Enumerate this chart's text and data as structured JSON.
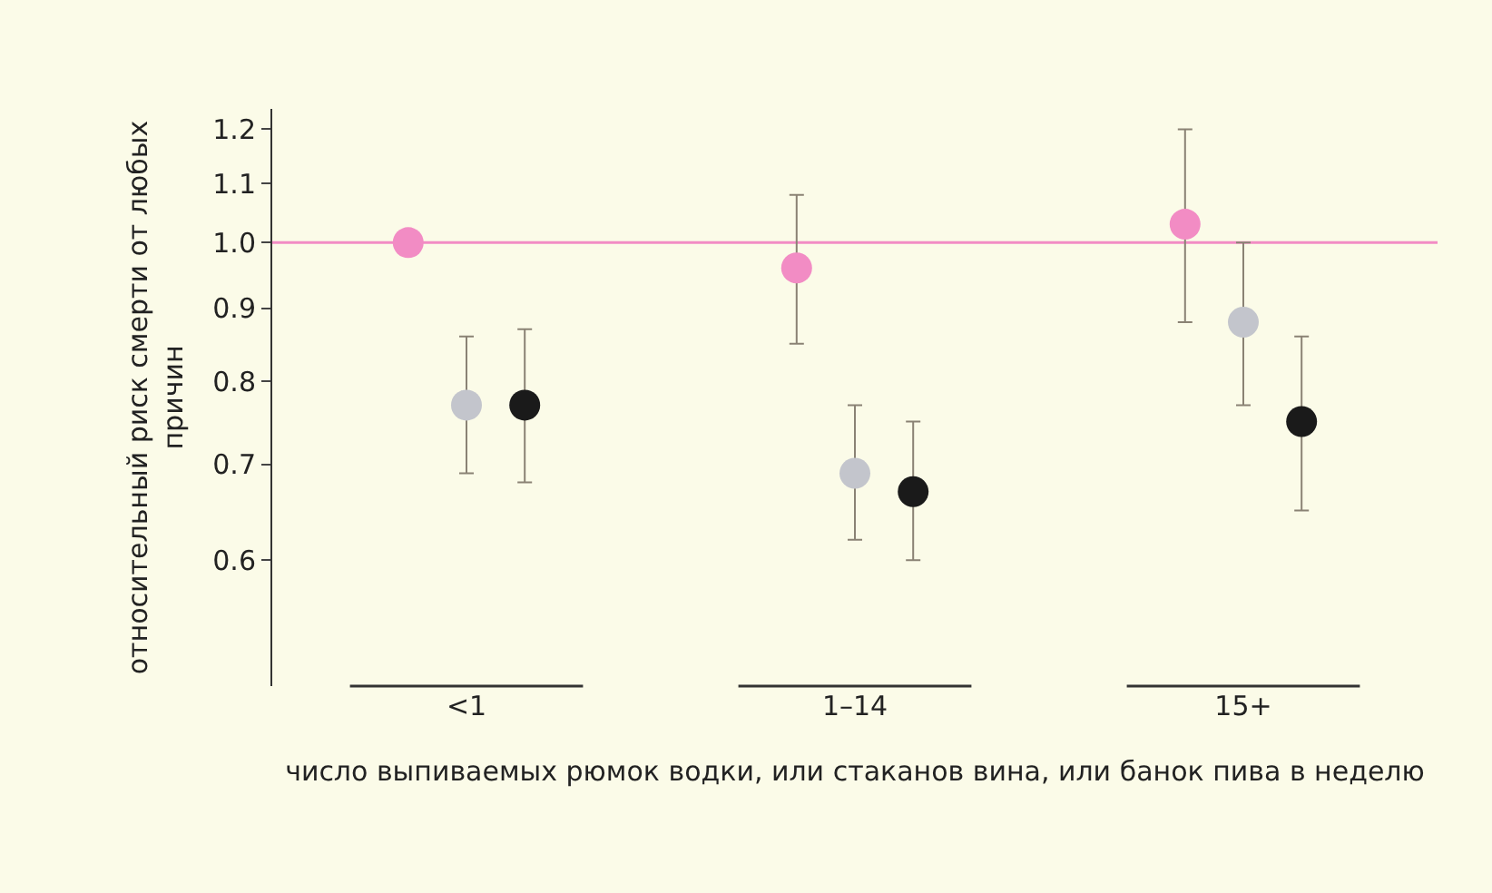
{
  "chart_data": {
    "type": "scatter",
    "xlabel": "число выпиваемых рюмок водки, или стаканов вина, или банок пива в неделю",
    "ylabel": "относительный риск смерти от любых причин",
    "categories": [
      "<1",
      "1–14",
      "15+"
    ],
    "log": "y",
    "ylim": [
      0.49,
      1.24
    ],
    "yticks": [
      0.6,
      0.7,
      0.8,
      0.9,
      {
        "value": 1.0,
        "label": "1.0"
      },
      1.1,
      1.2
    ],
    "grid": false,
    "marker": "circle",
    "series": [
      {
        "color": "#f28cc4",
        "values": [
          1.0,
          0.96,
          1.03
        ],
        "errors": [
          null,
          [
            0.85,
            1.08
          ],
          [
            0.88,
            1.2
          ]
        ]
      },
      {
        "color": "#c3c5cc",
        "values": [
          0.77,
          0.69,
          0.88
        ],
        "errors": [
          [
            0.69,
            0.86
          ],
          [
            0.62,
            0.77
          ],
          [
            0.77,
            1.0
          ]
        ]
      },
      {
        "color": "#1a1a1a",
        "values": [
          0.77,
          0.67,
          0.75
        ],
        "errors": [
          [
            0.68,
            0.87
          ],
          [
            0.6,
            0.75
          ],
          [
            0.65,
            0.86
          ]
        ]
      }
    ],
    "ref_lines": [
      {
        "axis": "y",
        "value": 1.0,
        "color": "#f28cc4"
      }
    ]
  }
}
